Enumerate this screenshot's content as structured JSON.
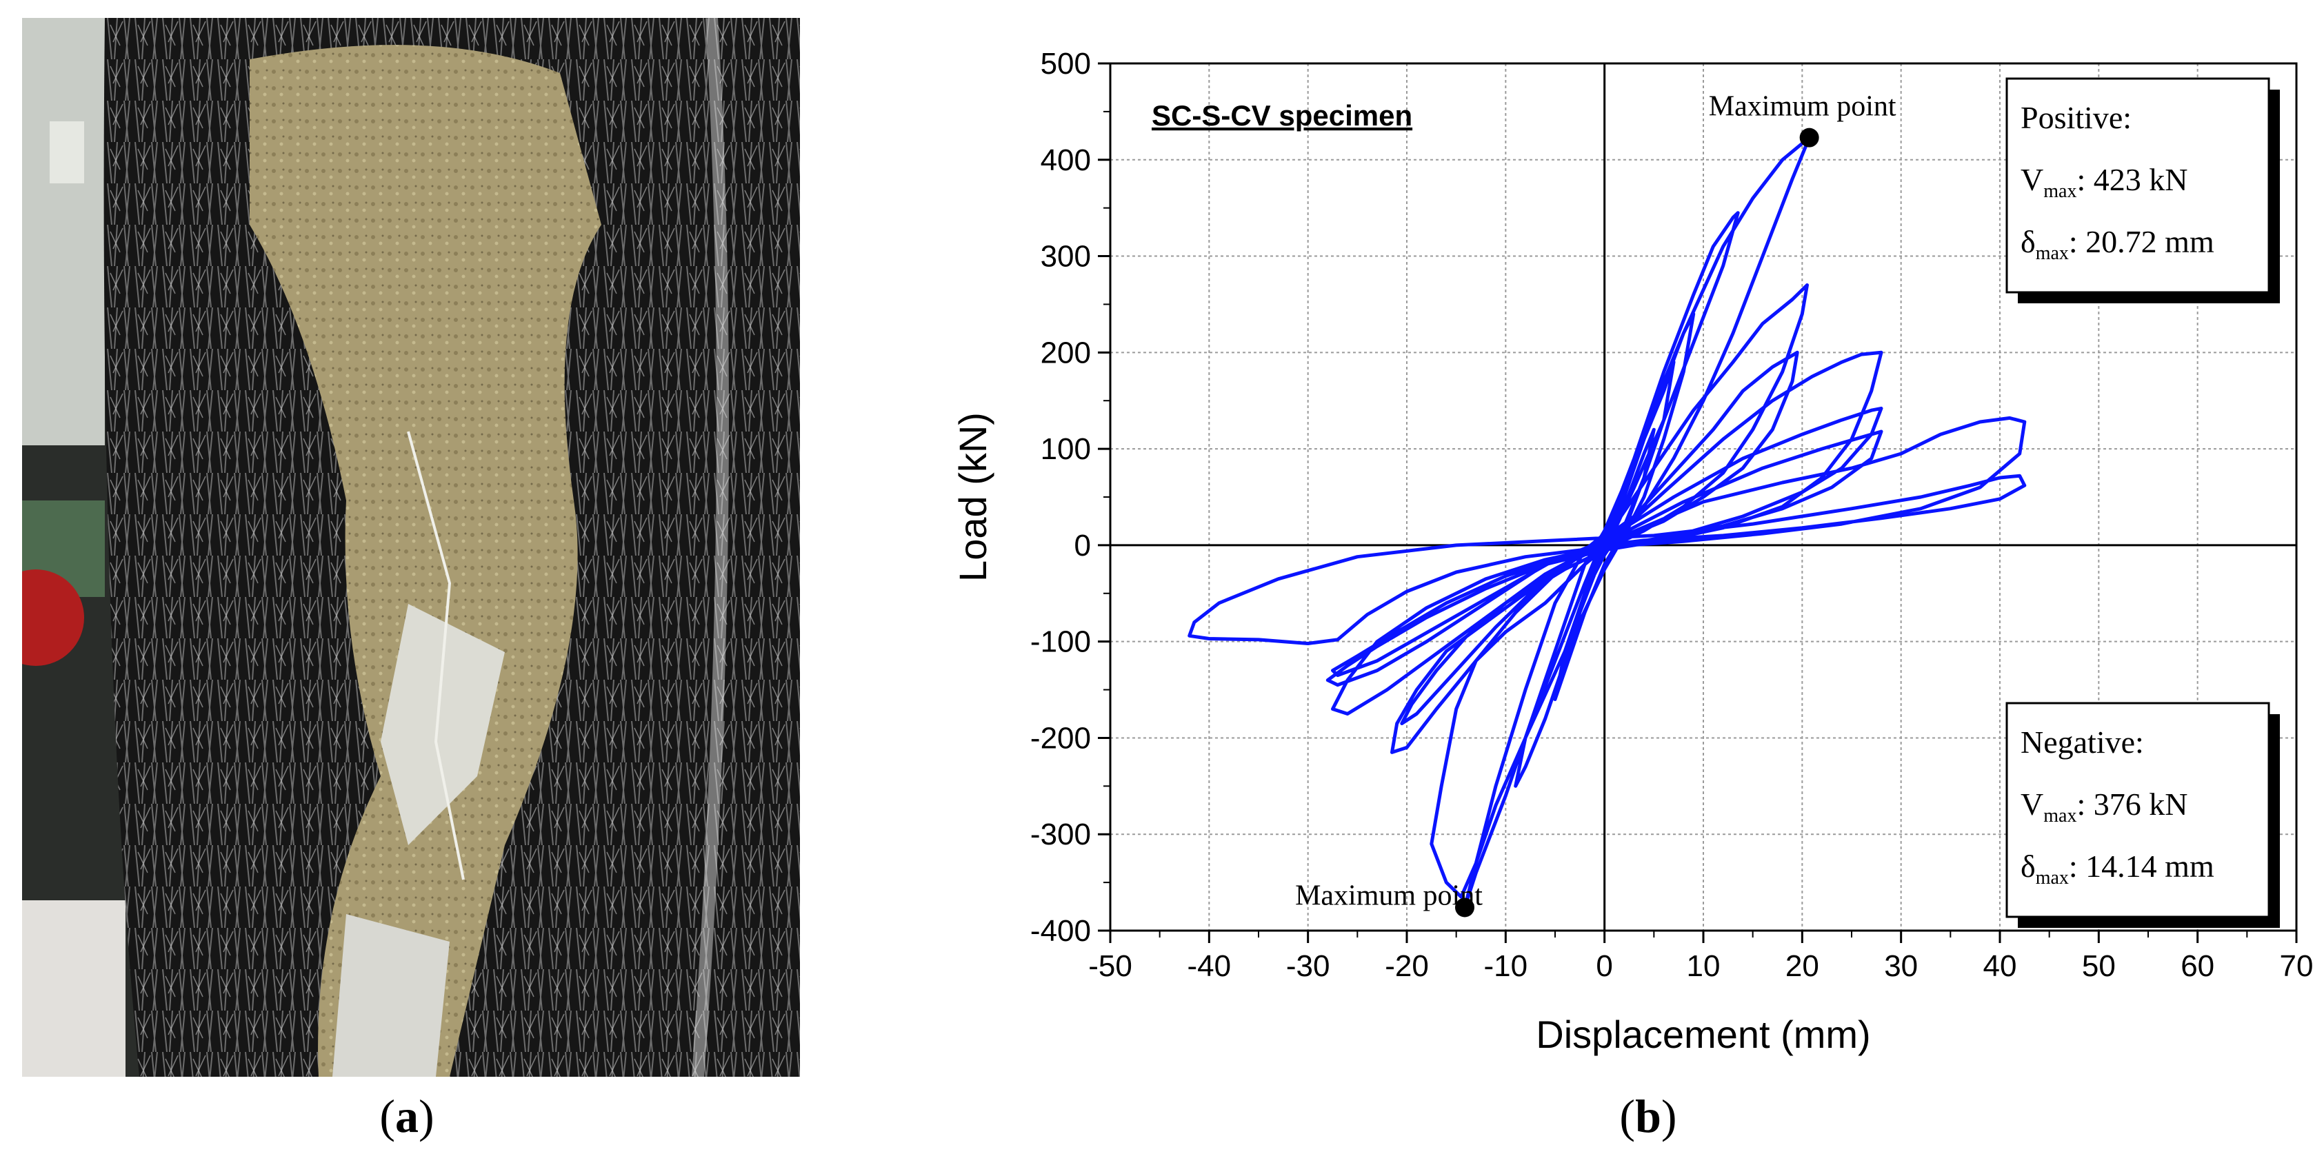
{
  "captions": {
    "a": "a",
    "b": "b"
  },
  "colors": {
    "series": "#0a14ff",
    "grid": "#9a9a9a",
    "axis": "#000000"
  },
  "photo": {
    "description_colors": {
      "cfrp": "#141414",
      "concrete": "#a89a6e",
      "crushed": "#d8d8d0"
    }
  },
  "chart_data": {
    "type": "line",
    "title": "SC-S-CV specimen",
    "xlabel": "Displacement (mm)",
    "ylabel": "Load (kN)",
    "xlim": [
      -50,
      70
    ],
    "ylim": [
      -400,
      500
    ],
    "xticks": [
      -50,
      -40,
      -30,
      -20,
      -10,
      0,
      10,
      20,
      30,
      40,
      50,
      60,
      70
    ],
    "yticks": [
      -400,
      -300,
      -200,
      -100,
      0,
      100,
      200,
      300,
      400,
      500
    ],
    "grid": true,
    "legend": "none",
    "series": [
      {
        "points": [
          [
            0,
            0
          ],
          [
            2,
            40
          ],
          [
            4,
            95
          ],
          [
            5,
            120
          ],
          [
            4,
            70
          ],
          [
            2,
            20
          ],
          [
            0,
            -10
          ],
          [
            -2,
            -50
          ],
          [
            -3,
            -90
          ],
          [
            -2,
            -50
          ],
          [
            0,
            -5
          ],
          [
            2,
            50
          ],
          [
            4,
            110
          ],
          [
            6,
            160
          ],
          [
            7,
            190
          ],
          [
            6,
            130
          ],
          [
            4,
            70
          ],
          [
            2,
            15
          ],
          [
            0,
            -20
          ],
          [
            -2,
            -70
          ],
          [
            -4,
            -130
          ],
          [
            -5,
            -160
          ],
          [
            -4,
            -110
          ],
          [
            -2,
            -50
          ],
          [
            0,
            5
          ],
          [
            3,
            80
          ],
          [
            6,
            170
          ],
          [
            8,
            220
          ],
          [
            9,
            240
          ],
          [
            8,
            180
          ],
          [
            6,
            110
          ],
          [
            4,
            50
          ],
          [
            2,
            10
          ],
          [
            0,
            -25
          ],
          [
            -3,
            -90
          ],
          [
            -6,
            -180
          ],
          [
            -8,
            -230
          ],
          [
            -9,
            -250
          ],
          [
            -8,
            -200
          ],
          [
            -5,
            -120
          ],
          [
            -2,
            -40
          ],
          [
            0,
            10
          ],
          [
            3,
            90
          ],
          [
            6,
            180
          ],
          [
            9,
            260
          ],
          [
            11,
            310
          ],
          [
            13,
            340
          ],
          [
            13.5,
            345
          ],
          [
            12,
            290
          ],
          [
            9,
            210
          ],
          [
            6,
            130
          ],
          [
            3,
            60
          ],
          [
            1,
            15
          ],
          [
            -1,
            -30
          ],
          [
            -4,
            -110
          ],
          [
            -8,
            -200
          ],
          [
            -11,
            -270
          ],
          [
            -13,
            -330
          ],
          [
            -14.14,
            -376
          ],
          [
            -13,
            -340
          ],
          [
            -10,
            -260
          ],
          [
            -7,
            -170
          ],
          [
            -4,
            -80
          ],
          [
            -2,
            -20
          ],
          [
            0,
            15
          ],
          [
            4,
            110
          ],
          [
            8,
            220
          ],
          [
            12,
            310
          ],
          [
            15,
            360
          ],
          [
            18,
            400
          ],
          [
            20.72,
            423
          ],
          [
            19,
            380
          ],
          [
            16,
            300
          ],
          [
            13,
            220
          ],
          [
            10,
            150
          ],
          [
            7,
            90
          ],
          [
            4,
            40
          ],
          [
            1,
            5
          ],
          [
            -2,
            -20
          ],
          [
            -6,
            -60
          ],
          [
            -10,
            -90
          ],
          [
            -13,
            -120
          ],
          [
            -15,
            -170
          ],
          [
            -16.5,
            -250
          ],
          [
            -17.5,
            -310
          ],
          [
            -16,
            -350
          ],
          [
            -14.5,
            -365
          ],
          [
            -13,
            -330
          ],
          [
            -11,
            -250
          ],
          [
            -8,
            -150
          ],
          [
            -5,
            -60
          ],
          [
            -2,
            -5
          ],
          [
            1,
            20
          ],
          [
            5,
            80
          ],
          [
            9,
            140
          ],
          [
            13,
            190
          ],
          [
            16,
            230
          ],
          [
            19,
            255
          ],
          [
            20.5,
            270
          ],
          [
            20,
            240
          ],
          [
            18,
            180
          ],
          [
            15,
            120
          ],
          [
            12,
            75
          ],
          [
            8,
            40
          ],
          [
            4,
            15
          ],
          [
            0,
            -5
          ],
          [
            -4,
            -25
          ],
          [
            -8,
            -50
          ],
          [
            -12,
            -80
          ],
          [
            -16,
            -110
          ],
          [
            -19,
            -150
          ],
          [
            -21,
            -185
          ],
          [
            -21.5,
            -215
          ],
          [
            -20,
            -210
          ],
          [
            -17,
            -170
          ],
          [
            -13,
            -120
          ],
          [
            -9,
            -70
          ],
          [
            -5,
            -30
          ],
          [
            -1,
            0
          ],
          [
            3,
            30
          ],
          [
            7,
            75
          ],
          [
            11,
            120
          ],
          [
            14,
            160
          ],
          [
            17,
            185
          ],
          [
            19.5,
            200
          ],
          [
            19,
            170
          ],
          [
            17,
            120
          ],
          [
            14,
            80
          ],
          [
            10,
            50
          ],
          [
            6,
            25
          ],
          [
            2,
            8
          ],
          [
            -2,
            -8
          ],
          [
            -6,
            -30
          ],
          [
            -10,
            -60
          ],
          [
            -14,
            -95
          ],
          [
            -17,
            -130
          ],
          [
            -19.5,
            -165
          ],
          [
            -20.5,
            -185
          ],
          [
            -19,
            -175
          ],
          [
            -15,
            -130
          ],
          [
            -11,
            -85
          ],
          [
            -7,
            -45
          ],
          [
            -3,
            -12
          ],
          [
            1,
            8
          ],
          [
            6,
            55
          ],
          [
            12,
            110
          ],
          [
            17,
            150
          ],
          [
            21,
            175
          ],
          [
            24,
            190
          ],
          [
            26,
            198
          ],
          [
            28,
            200
          ],
          [
            27,
            160
          ],
          [
            25,
            110
          ],
          [
            22,
            70
          ],
          [
            18,
            40
          ],
          [
            12,
            18
          ],
          [
            6,
            5
          ],
          [
            0,
            -5
          ],
          [
            -6,
            -20
          ],
          [
            -12,
            -45
          ],
          [
            -18,
            -75
          ],
          [
            -23,
            -105
          ],
          [
            -26,
            -125
          ],
          [
            -28,
            -140
          ],
          [
            -27,
            -145
          ],
          [
            -23,
            -130
          ],
          [
            -18,
            -100
          ],
          [
            -12,
            -60
          ],
          [
            -6,
            -20
          ],
          [
            0,
            5
          ],
          [
            7,
            50
          ],
          [
            14,
            90
          ],
          [
            20,
            115
          ],
          [
            24,
            130
          ],
          [
            27,
            140
          ],
          [
            28,
            142
          ],
          [
            27,
            115
          ],
          [
            24,
            80
          ],
          [
            20,
            55
          ],
          [
            14,
            30
          ],
          [
            8,
            12
          ],
          [
            2,
            0
          ],
          [
            -4,
            -12
          ],
          [
            -10,
            -32
          ],
          [
            -16,
            -60
          ],
          [
            -21,
            -90
          ],
          [
            -25,
            -115
          ],
          [
            -27.5,
            -130
          ],
          [
            -27,
            -135
          ],
          [
            -23,
            -120
          ],
          [
            -17,
            -85
          ],
          [
            -11,
            -50
          ],
          [
            -5,
            -15
          ],
          [
            1,
            8
          ],
          [
            8,
            45
          ],
          [
            16,
            80
          ],
          [
            22,
            100
          ],
          [
            26,
            112
          ],
          [
            28,
            118
          ],
          [
            27,
            90
          ],
          [
            23,
            60
          ],
          [
            18,
            38
          ],
          [
            12,
            20
          ],
          [
            6,
            8
          ],
          [
            0,
            -2
          ],
          [
            -6,
            -15
          ],
          [
            -12,
            -35
          ],
          [
            -18,
            -65
          ],
          [
            -23,
            -100
          ],
          [
            -26,
            -140
          ],
          [
            -27.5,
            -170
          ],
          [
            -26,
            -175
          ],
          [
            -22,
            -150
          ],
          [
            -16,
            -105
          ],
          [
            -10,
            -60
          ],
          [
            -4,
            -20
          ],
          [
            2,
            10
          ],
          [
            10,
            45
          ],
          [
            18,
            65
          ],
          [
            25,
            80
          ],
          [
            30,
            95
          ],
          [
            34,
            115
          ],
          [
            38,
            128
          ],
          [
            41,
            132
          ],
          [
            42.5,
            128
          ],
          [
            42,
            95
          ],
          [
            38,
            60
          ],
          [
            32,
            38
          ],
          [
            24,
            22
          ],
          [
            16,
            12
          ],
          [
            8,
            4
          ],
          [
            0,
            -2
          ],
          [
            -8,
            -12
          ],
          [
            -15,
            -28
          ],
          [
            -20,
            -48
          ],
          [
            -24,
            -72
          ],
          [
            -27,
            -98
          ],
          [
            -30,
            -102
          ],
          [
            -35,
            -98
          ],
          [
            -40,
            -97
          ],
          [
            -42,
            -94
          ],
          [
            -41.5,
            -80
          ],
          [
            -39,
            -60
          ],
          [
            -33,
            -35
          ],
          [
            -25,
            -12
          ],
          [
            -15,
            0
          ],
          [
            -5,
            5
          ],
          [
            5,
            10
          ],
          [
            15,
            22
          ],
          [
            25,
            38
          ],
          [
            32,
            50
          ],
          [
            37,
            62
          ],
          [
            40,
            70
          ],
          [
            42,
            72
          ],
          [
            42.5,
            62
          ],
          [
            40,
            48
          ],
          [
            35,
            38
          ],
          [
            28,
            28
          ],
          [
            20,
            18
          ],
          [
            12,
            10
          ],
          [
            4,
            5
          ],
          [
            0,
            0
          ]
        ]
      }
    ],
    "annotations": [
      {
        "text": "Maximum point",
        "x": 20.72,
        "y": 423
      },
      {
        "text": "Maximum point",
        "x": -14.14,
        "y": -376
      }
    ],
    "info_boxes": [
      {
        "heading": "Positive:",
        "v_label": "V",
        "v_sub": "max",
        "v_value": ": 423 kN",
        "d_label": "δ",
        "d_sub": "max",
        "d_value": ": 20.72 mm"
      },
      {
        "heading": "Negative:",
        "v_label": "V",
        "v_sub": "max",
        "v_value": ": 376 kN",
        "d_label": "δ",
        "d_sub": "max",
        "d_value": ": 14.14 mm"
      }
    ]
  }
}
